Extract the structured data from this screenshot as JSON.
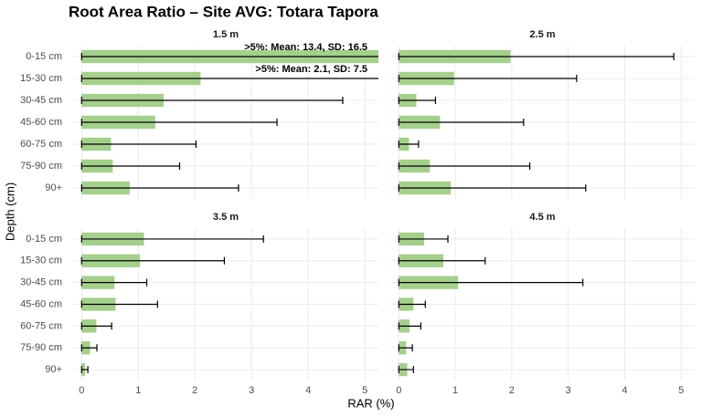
{
  "chart_data": {
    "type": "bar",
    "title": "Root Area Ratio – Site AVG: Totara Tapora",
    "x_label": "RAR (%)",
    "y_label": "Depth (cm)",
    "categories": [
      "0-15 cm",
      "15-30 cm",
      "30-45 cm",
      "45-60 cm",
      "60-75 cm",
      "75-90 cm",
      "90+"
    ],
    "color": "#a5cf8c",
    "xlim": [
      -0.15,
      5.24
    ],
    "xticks": [
      0,
      1,
      2,
      3,
      4,
      5
    ],
    "grid": true,
    "facets": [
      {
        "title": "1.5 m",
        "values": [
          13.4,
          2.1,
          1.45,
          1.3,
          0.52,
          0.55,
          0.85
        ],
        "errors": [
          16.5,
          7.5,
          3.16,
          2.15,
          1.5,
          1.18,
          1.92
        ],
        "annotations": [
          ">5%: Mean: 13.4, SD: 16.5",
          ">5%: Mean: 2.1, SD: 7.5"
        ]
      },
      {
        "title": "2.5 m",
        "values": [
          1.98,
          0.98,
          0.31,
          0.73,
          0.18,
          0.55,
          0.92
        ],
        "errors": [
          2.89,
          2.17,
          0.34,
          1.48,
          0.17,
          1.77,
          2.39
        ]
      },
      {
        "title": "3.5 m",
        "values": [
          1.1,
          1.03,
          0.58,
          0.6,
          0.26,
          0.15,
          0.06
        ],
        "errors": [
          2.11,
          1.49,
          0.57,
          0.74,
          0.27,
          0.12,
          0.05
        ]
      },
      {
        "title": "4.5 m",
        "values": [
          0.45,
          0.79,
          1.05,
          0.26,
          0.19,
          0.13,
          0.15
        ],
        "errors": [
          0.42,
          0.74,
          2.21,
          0.21,
          0.2,
          0.11,
          0.11
        ]
      }
    ]
  }
}
